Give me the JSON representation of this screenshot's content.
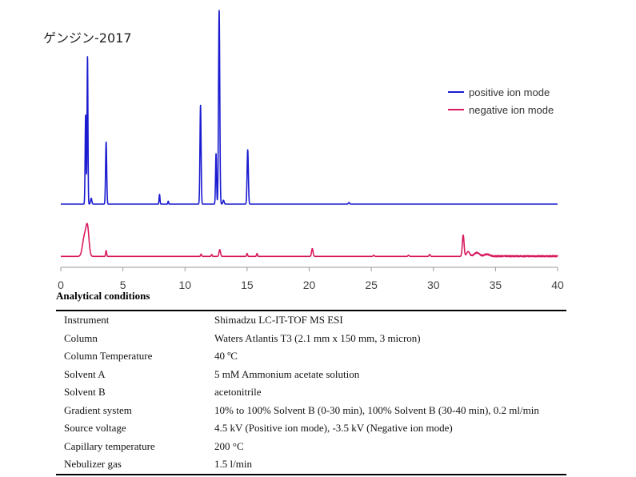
{
  "sample_title": "ゲンジン-2017",
  "chart_data": {
    "type": "line",
    "xlim": [
      0,
      40
    ],
    "x_ticks": [
      0,
      5,
      10,
      15,
      20,
      25,
      30,
      35,
      40
    ],
    "grid": false,
    "legend_position": "top-right",
    "series": [
      {
        "name": "positive ion mode",
        "color": "#1a1ad0",
        "baseline_rel": 0,
        "peaks": [
          {
            "rt": 2.0,
            "height": 0.46,
            "width": 0.04
          },
          {
            "rt": 2.15,
            "height": 0.76,
            "width": 0.035
          },
          {
            "rt": 2.45,
            "height": 0.03,
            "width": 0.05
          },
          {
            "rt": 3.65,
            "height": 0.32,
            "width": 0.045
          },
          {
            "rt": 7.95,
            "height": 0.05,
            "width": 0.035
          },
          {
            "rt": 8.65,
            "height": 0.015,
            "width": 0.03
          },
          {
            "rt": 11.25,
            "height": 0.51,
            "width": 0.045
          },
          {
            "rt": 12.5,
            "height": 0.26,
            "width": 0.04
          },
          {
            "rt": 12.75,
            "height": 1.0,
            "width": 0.05
          },
          {
            "rt": 13.1,
            "height": 0.02,
            "width": 0.05
          },
          {
            "rt": 15.05,
            "height": 0.28,
            "width": 0.05
          },
          {
            "rt": 23.2,
            "height": 0.008,
            "width": 0.05
          }
        ]
      },
      {
        "name": "negative ion mode",
        "color": "#d81b60",
        "baseline_rel": -0.27,
        "peaks": [
          {
            "rt": 1.9,
            "height": 0.1,
            "width": 0.15
          },
          {
            "rt": 2.15,
            "height": 0.14,
            "width": 0.12
          },
          {
            "rt": 3.65,
            "height": 0.03,
            "width": 0.04
          },
          {
            "rt": 11.3,
            "height": 0.012,
            "width": 0.04
          },
          {
            "rt": 12.15,
            "height": 0.01,
            "width": 0.04
          },
          {
            "rt": 12.8,
            "height": 0.035,
            "width": 0.06
          },
          {
            "rt": 15.0,
            "height": 0.015,
            "width": 0.04
          },
          {
            "rt": 15.8,
            "height": 0.015,
            "width": 0.04
          },
          {
            "rt": 20.25,
            "height": 0.04,
            "width": 0.06
          },
          {
            "rt": 25.2,
            "height": 0.006,
            "width": 0.05
          },
          {
            "rt": 28.0,
            "height": 0.006,
            "width": 0.05
          },
          {
            "rt": 29.7,
            "height": 0.01,
            "width": 0.05
          },
          {
            "rt": 32.4,
            "height": 0.11,
            "width": 0.07
          },
          {
            "rt": 32.8,
            "height": 0.025,
            "width": 0.12
          },
          {
            "rt": 33.5,
            "height": 0.018,
            "width": 0.2
          },
          {
            "rt": 34.3,
            "height": 0.01,
            "width": 0.2
          }
        ],
        "noise_range": [
          33.0,
          40.0
        ],
        "noise_amplitude": 0.006
      }
    ]
  },
  "conditions": {
    "heading": "Analytical conditions",
    "rows": [
      {
        "param": "Instrument",
        "value": "Shimadzu LC-IT-TOF MS ESI"
      },
      {
        "param": "Column",
        "value": "Waters Atlantis T3 (2.1 mm x 150 mm, 3 micron)"
      },
      {
        "param": "Column Temperature",
        "value": "40 ºC"
      },
      {
        "param": "Solvent A",
        "value": "5 mM Ammonium acetate solution"
      },
      {
        "param": "Solvent B",
        "value": "acetonitrile"
      },
      {
        "param": "Gradient system",
        "value": "10% to 100% Solvent B (0-30 min), 100% Solvent B (30-40 min), 0.2 ml/min"
      },
      {
        "param": "Source voltage",
        "value": "4.5 kV (Positive ion mode), -3.5 kV (Negative ion mode)"
      },
      {
        "param": "Capillary temperature",
        "value": "200 °C"
      },
      {
        "param": "Nebulizer gas",
        "value": "1.5 l/min"
      }
    ]
  }
}
